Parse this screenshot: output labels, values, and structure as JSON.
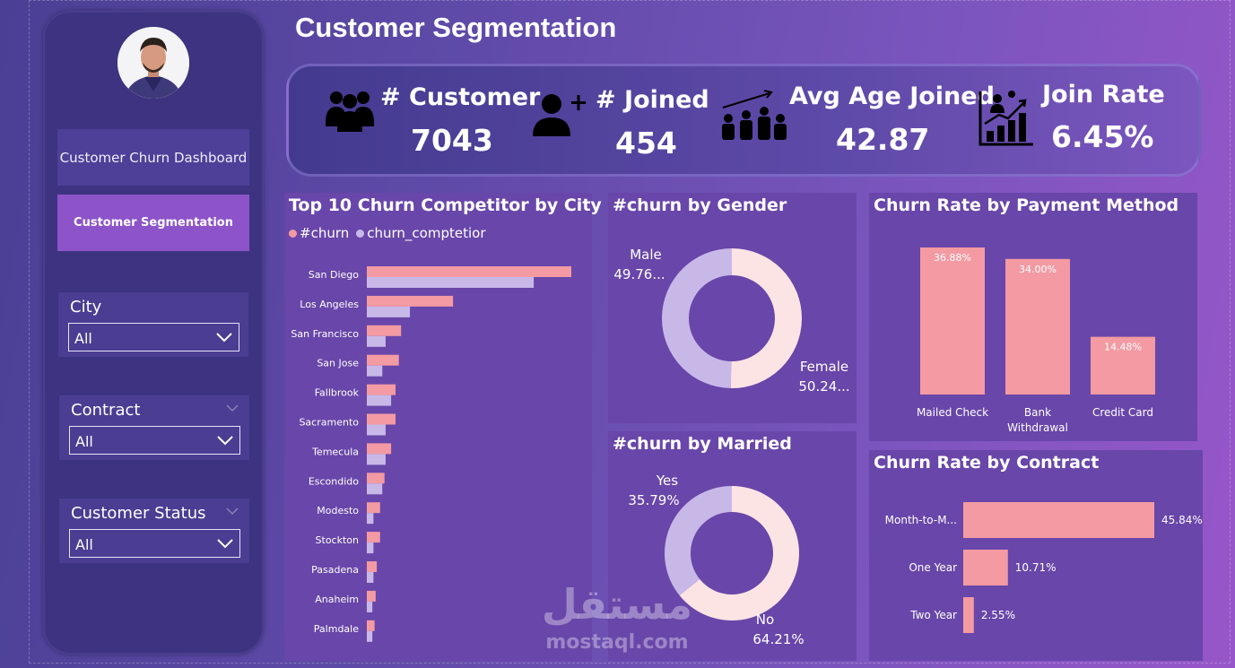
{
  "title": "Customer Segmentation",
  "nav": {
    "dashboard_label": "Customer Churn Dashboard",
    "segmentation_label": "Customer Segmentation"
  },
  "filters": [
    {
      "label": "City",
      "value": "All"
    },
    {
      "label": "Contract",
      "value": "All"
    },
    {
      "label": "Customer Status",
      "value": "All"
    }
  ],
  "kpis": [
    {
      "title": "# Customer",
      "value": "7043",
      "icon": "people-group-icon"
    },
    {
      "title": "# Joined",
      "value": "454",
      "icon": "add-user-icon"
    },
    {
      "title": "Avg Age Joined",
      "value": "42.87",
      "icon": "growth-people-icon"
    },
    {
      "title": "Join Rate",
      "value": "6.45%",
      "icon": "growth-chart-icon"
    }
  ],
  "colors": {
    "pink": "#f39aa3",
    "lilac": "#c8b8e8",
    "female": "#fde4e4",
    "card": "#6946a9"
  },
  "chart_data": [
    {
      "type": "bar",
      "title": "Top 10 Churn Competitor by City",
      "orientation": "horizontal",
      "categories": [
        "San Diego",
        "Los Angeles",
        "San Francisco",
        "San Jose",
        "Fallbrook",
        "Sacramento",
        "Temecula",
        "Escondido",
        "Modesto",
        "Stockton",
        "Pasadena",
        "Anaheim",
        "Palmdale"
      ],
      "series": [
        {
          "name": "#churn",
          "values": [
            185,
            78,
            31,
            29,
            26,
            26,
            22,
            16,
            12,
            12,
            9,
            8,
            7
          ]
        },
        {
          "name": "churn_comptetior",
          "values": [
            151,
            39,
            17,
            14,
            22,
            17,
            17,
            14,
            6,
            6,
            6,
            5,
            5
          ]
        }
      ],
      "legend": "top-left"
    },
    {
      "type": "pie",
      "title": "#churn by Gender",
      "labels": [
        "Male",
        "Female"
      ],
      "values": [
        49.76,
        50.24
      ],
      "data_labels": [
        "49.76...",
        "50.24..."
      ]
    },
    {
      "type": "pie",
      "title": "#churn by Married",
      "labels": [
        "Yes",
        "No"
      ],
      "values": [
        35.79,
        64.21
      ],
      "data_labels": [
        "35.79%",
        "64.21%"
      ]
    },
    {
      "type": "bar",
      "title": "Churn Rate by Payment Method",
      "categories": [
        "Mailed Check",
        "Bank\nWithdrawal",
        "Credit Card"
      ],
      "values": [
        36.88,
        34.0,
        14.48
      ],
      "data_labels": [
        "36.88%",
        "34.00%",
        "14.48%"
      ]
    },
    {
      "type": "bar",
      "title": "Churn Rate by Contract",
      "orientation": "horizontal",
      "categories": [
        "Month-to-M...",
        "One Year",
        "Two Year"
      ],
      "values": [
        45.84,
        10.71,
        2.55
      ],
      "data_labels": [
        "45.84%",
        "10.71%",
        "2.55%"
      ]
    }
  ],
  "watermark": {
    "arabic": "مستقل",
    "latin": "mostaql.com"
  }
}
